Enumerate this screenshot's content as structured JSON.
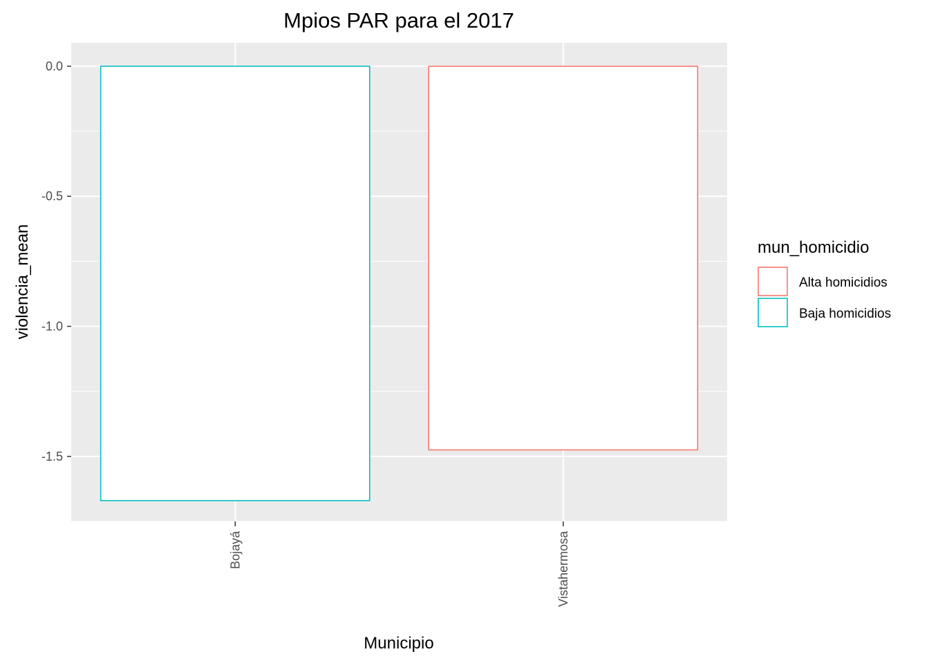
{
  "chart_data": {
    "type": "bar",
    "title": "Mpios PAR para el 2017",
    "xlabel": "Municipio",
    "ylabel": "violencia_mean",
    "categories": [
      "Bojayá",
      "Vistahermosa"
    ],
    "values": [
      -1.67,
      -1.475
    ],
    "bar_groups": [
      "Baja homicidios",
      "Alta homicidios"
    ],
    "ylim": [
      -1.75,
      0.09
    ],
    "yticks": [
      0.0,
      -0.5,
      -1.0,
      -1.5
    ],
    "ytick_labels": [
      "0.0",
      "-0.5",
      "-1.0",
      "-1.5"
    ],
    "grid": true,
    "legend": {
      "title": "mun_homicidio",
      "position": "right",
      "entries": [
        {
          "label": "Alta homicidios",
          "color": "#F8766D"
        },
        {
          "label": "Baja homicidios",
          "color": "#00BFC4"
        }
      ]
    },
    "colors": {
      "panel_background": "#EBEBEB",
      "grid": "#FFFFFF",
      "bar_fill": "#FFFFFF"
    }
  }
}
